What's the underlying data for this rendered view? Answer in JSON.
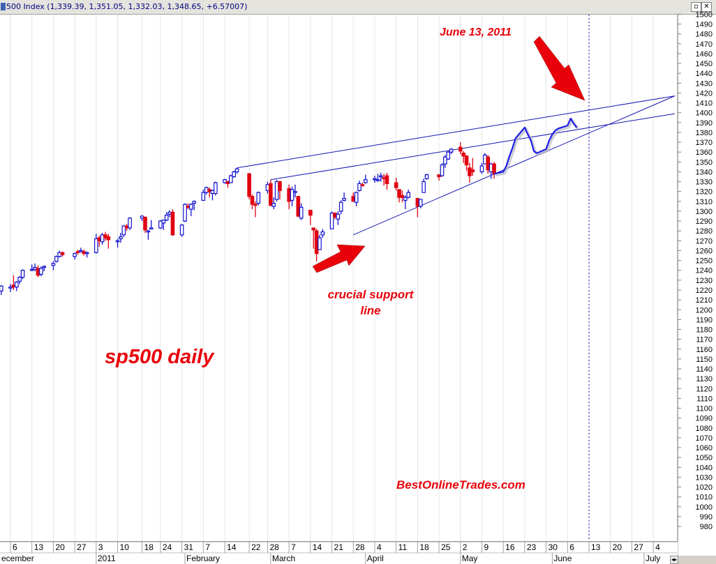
{
  "window": {
    "title": "500 Index (1,339.39, 1,351.05, 1,332.03, 1,348.65, +6.57007)",
    "restore_glyph": "▫",
    "close_glyph": "✕",
    "scroll_glyph": "◂▸"
  },
  "colors": {
    "plot_bg": "#ffffff",
    "up_candle": "#1010d0",
    "down_candle": "#e00010",
    "trendline": "#1414b4",
    "projection": "#1e1ee6",
    "annotation": "#e8000a",
    "axis_bg": "#ffffff"
  },
  "annotations": {
    "date_label": "June 13, 2011",
    "support_line1": "crucial support",
    "support_line2": "line",
    "chart_label": "sp500 daily",
    "watermark": "BestOnlineTrades.com"
  },
  "chart_data": {
    "type": "candlestick",
    "y_axis_side": "right",
    "ylim": [
      980,
      1500
    ],
    "y_tick_step": 10,
    "x_tick_labels": [
      {
        "date": "2010-12-06",
        "label": "6"
      },
      {
        "date": "2010-12-13",
        "label": "13"
      },
      {
        "date": "2010-12-20",
        "label": "20"
      },
      {
        "date": "2010-12-27",
        "label": "27"
      },
      {
        "date": "2011-01-03",
        "label": "3"
      },
      {
        "date": "2011-01-10",
        "label": "10"
      },
      {
        "date": "2011-01-18",
        "label": "18"
      },
      {
        "date": "2011-01-24",
        "label": "24"
      },
      {
        "date": "2011-01-31",
        "label": "31"
      },
      {
        "date": "2011-02-07",
        "label": "7"
      },
      {
        "date": "2011-02-14",
        "label": "14"
      },
      {
        "date": "2011-02-22",
        "label": "22"
      },
      {
        "date": "2011-02-28",
        "label": "28"
      },
      {
        "date": "2011-03-07",
        "label": "7"
      },
      {
        "date": "2011-03-14",
        "label": "14"
      },
      {
        "date": "2011-03-21",
        "label": "21"
      },
      {
        "date": "2011-03-28",
        "label": "28"
      },
      {
        "date": "2011-04-04",
        "label": "4"
      },
      {
        "date": "2011-04-11",
        "label": "11"
      },
      {
        "date": "2011-04-18",
        "label": "18"
      },
      {
        "date": "2011-04-25",
        "label": "25"
      },
      {
        "date": "2011-05-02",
        "label": "2"
      },
      {
        "date": "2011-05-09",
        "label": "9"
      },
      {
        "date": "2011-05-16",
        "label": "16"
      },
      {
        "date": "2011-05-23",
        "label": "23"
      },
      {
        "date": "2011-05-30",
        "label": "30"
      },
      {
        "date": "2011-06-06",
        "label": "6"
      },
      {
        "date": "2011-06-13",
        "label": "13"
      },
      {
        "date": "2011-06-20",
        "label": "20"
      },
      {
        "date": "2011-06-27",
        "label": "27"
      },
      {
        "date": "2011-07-04",
        "label": "4"
      }
    ],
    "month_labels": [
      {
        "date": "2010-12-01",
        "label": "ecember"
      },
      {
        "date": "2011-01-03",
        "label": "2011"
      },
      {
        "date": "2011-02-01",
        "label": "February"
      },
      {
        "date": "2011-03-01",
        "label": "March"
      },
      {
        "date": "2011-04-01",
        "label": "April"
      },
      {
        "date": "2011-05-02",
        "label": "May"
      },
      {
        "date": "2011-06-01",
        "label": "June"
      },
      {
        "date": "2011-07-01",
        "label": "July"
      }
    ],
    "marker_date": "2011-06-13",
    "candles": [
      {
        "d": "2010-12-03",
        "o": 1219,
        "h": 1225,
        "l": 1215,
        "c": 1224
      },
      {
        "d": "2010-12-06",
        "o": 1223,
        "h": 1226,
        "l": 1218,
        "c": 1223
      },
      {
        "d": "2010-12-07",
        "o": 1225,
        "h": 1235,
        "l": 1220,
        "c": 1223
      },
      {
        "d": "2010-12-08",
        "o": 1223,
        "h": 1229,
        "l": 1219,
        "c": 1228
      },
      {
        "d": "2010-12-09",
        "o": 1229,
        "h": 1234,
        "l": 1226,
        "c": 1233
      },
      {
        "d": "2010-12-10",
        "o": 1233,
        "h": 1241,
        "l": 1231,
        "c": 1240
      },
      {
        "d": "2010-12-13",
        "o": 1241,
        "h": 1246,
        "l": 1239,
        "c": 1241
      },
      {
        "d": "2010-12-14",
        "o": 1241,
        "h": 1247,
        "l": 1239,
        "c": 1243
      },
      {
        "d": "2010-12-15",
        "o": 1242,
        "h": 1245,
        "l": 1233,
        "c": 1235
      },
      {
        "d": "2010-12-16",
        "o": 1236,
        "h": 1244,
        "l": 1234,
        "c": 1242
      },
      {
        "d": "2010-12-17",
        "o": 1243,
        "h": 1245,
        "l": 1239,
        "c": 1244
      },
      {
        "d": "2010-12-20",
        "o": 1245,
        "h": 1249,
        "l": 1240,
        "c": 1247
      },
      {
        "d": "2010-12-21",
        "o": 1249,
        "h": 1255,
        "l": 1248,
        "c": 1254
      },
      {
        "d": "2010-12-22",
        "o": 1254,
        "h": 1260,
        "l": 1253,
        "c": 1258
      },
      {
        "d": "2010-12-23",
        "o": 1258,
        "h": 1259,
        "l": 1254,
        "c": 1256
      },
      {
        "d": "2010-12-27",
        "o": 1254,
        "h": 1258,
        "l": 1251,
        "c": 1257
      },
      {
        "d": "2010-12-28",
        "o": 1259,
        "h": 1261,
        "l": 1256,
        "c": 1258
      },
      {
        "d": "2010-12-29",
        "o": 1259,
        "h": 1263,
        "l": 1258,
        "c": 1260
      },
      {
        "d": "2010-12-30",
        "o": 1259,
        "h": 1261,
        "l": 1255,
        "c": 1257
      },
      {
        "d": "2010-12-31",
        "o": 1257,
        "h": 1259,
        "l": 1253,
        "c": 1258
      },
      {
        "d": "2011-01-03",
        "o": 1258,
        "h": 1277,
        "l": 1257,
        "c": 1272
      },
      {
        "d": "2011-01-04",
        "o": 1273,
        "h": 1275,
        "l": 1264,
        "c": 1270
      },
      {
        "d": "2011-01-05",
        "o": 1269,
        "h": 1278,
        "l": 1266,
        "c": 1276
      },
      {
        "d": "2011-01-06",
        "o": 1276,
        "h": 1279,
        "l": 1270,
        "c": 1273
      },
      {
        "d": "2011-01-07",
        "o": 1274,
        "h": 1277,
        "l": 1262,
        "c": 1271
      },
      {
        "d": "2011-01-10",
        "o": 1270,
        "h": 1272,
        "l": 1263,
        "c": 1270
      },
      {
        "d": "2011-01-11",
        "o": 1272,
        "h": 1278,
        "l": 1268,
        "c": 1274
      },
      {
        "d": "2011-01-12",
        "o": 1276,
        "h": 1286,
        "l": 1274,
        "c": 1285
      },
      {
        "d": "2011-01-13",
        "o": 1285,
        "h": 1287,
        "l": 1280,
        "c": 1283
      },
      {
        "d": "2011-01-14",
        "o": 1283,
        "h": 1294,
        "l": 1281,
        "c": 1293
      },
      {
        "d": "2011-01-18",
        "o": 1293,
        "h": 1296,
        "l": 1290,
        "c": 1295
      },
      {
        "d": "2011-01-19",
        "o": 1294,
        "h": 1294,
        "l": 1278,
        "c": 1281
      },
      {
        "d": "2011-01-20",
        "o": 1280,
        "h": 1281,
        "l": 1271,
        "c": 1280
      },
      {
        "d": "2011-01-21",
        "o": 1283,
        "h": 1291,
        "l": 1282,
        "c": 1283
      },
      {
        "d": "2011-01-24",
        "o": 1283,
        "h": 1291,
        "l": 1282,
        "c": 1290
      },
      {
        "d": "2011-01-25",
        "o": 1288,
        "h": 1291,
        "l": 1281,
        "c": 1291
      },
      {
        "d": "2011-01-26",
        "o": 1291,
        "h": 1299,
        "l": 1290,
        "c": 1296
      },
      {
        "d": "2011-01-27",
        "o": 1297,
        "h": 1301,
        "l": 1294,
        "c": 1299
      },
      {
        "d": "2011-01-28",
        "o": 1299,
        "h": 1302,
        "l": 1275,
        "c": 1276
      },
      {
        "d": "2011-01-31",
        "o": 1276,
        "h": 1287,
        "l": 1274,
        "c": 1286
      },
      {
        "d": "2011-02-01",
        "o": 1290,
        "h": 1308,
        "l": 1289,
        "c": 1307
      },
      {
        "d": "2011-02-02",
        "o": 1305,
        "h": 1308,
        "l": 1302,
        "c": 1304
      },
      {
        "d": "2011-02-03",
        "o": 1302,
        "h": 1308,
        "l": 1295,
        "c": 1307
      },
      {
        "d": "2011-02-04",
        "o": 1308,
        "h": 1311,
        "l": 1301,
        "c": 1310
      },
      {
        "d": "2011-02-07",
        "o": 1311,
        "h": 1322,
        "l": 1311,
        "c": 1319
      },
      {
        "d": "2011-02-08",
        "o": 1319,
        "h": 1325,
        "l": 1317,
        "c": 1324
      },
      {
        "d": "2011-02-09",
        "o": 1322,
        "h": 1324,
        "l": 1314,
        "c": 1320
      },
      {
        "d": "2011-02-10",
        "o": 1318,
        "h": 1322,
        "l": 1311,
        "c": 1321
      },
      {
        "d": "2011-02-11",
        "o": 1318,
        "h": 1330,
        "l": 1316,
        "c": 1329
      },
      {
        "d": "2011-02-14",
        "o": 1329,
        "h": 1333,
        "l": 1328,
        "c": 1332
      },
      {
        "d": "2011-02-15",
        "o": 1330,
        "h": 1331,
        "l": 1324,
        "c": 1328
      },
      {
        "d": "2011-02-16",
        "o": 1329,
        "h": 1337,
        "l": 1329,
        "c": 1336
      },
      {
        "d": "2011-02-17",
        "o": 1335,
        "h": 1341,
        "l": 1334,
        "c": 1340
      },
      {
        "d": "2011-02-18",
        "o": 1340,
        "h": 1344,
        "l": 1338,
        "c": 1343
      },
      {
        "d": "2011-02-22",
        "o": 1338,
        "h": 1339,
        "l": 1312,
        "c": 1315
      },
      {
        "d": "2011-02-23",
        "o": 1315,
        "h": 1317,
        "l": 1302,
        "c": 1307
      },
      {
        "d": "2011-02-24",
        "o": 1307,
        "h": 1310,
        "l": 1294,
        "c": 1306
      },
      {
        "d": "2011-02-25",
        "o": 1308,
        "h": 1320,
        "l": 1306,
        "c": 1319
      },
      {
        "d": "2011-02-28",
        "o": 1321,
        "h": 1330,
        "l": 1318,
        "c": 1327
      },
      {
        "d": "2011-03-01",
        "o": 1328,
        "h": 1332,
        "l": 1305,
        "c": 1306
      },
      {
        "d": "2011-03-02",
        "o": 1305,
        "h": 1314,
        "l": 1302,
        "c": 1308
      },
      {
        "d": "2011-03-03",
        "o": 1312,
        "h": 1332,
        "l": 1310,
        "c": 1330
      },
      {
        "d": "2011-03-04",
        "o": 1330,
        "h": 1331,
        "l": 1312,
        "c": 1321
      },
      {
        "d": "2011-03-07",
        "o": 1323,
        "h": 1327,
        "l": 1302,
        "c": 1310
      },
      {
        "d": "2011-03-08",
        "o": 1311,
        "h": 1325,
        "l": 1305,
        "c": 1322
      },
      {
        "d": "2011-03-09",
        "o": 1320,
        "h": 1327,
        "l": 1314,
        "c": 1320
      },
      {
        "d": "2011-03-10",
        "o": 1315,
        "h": 1315,
        "l": 1294,
        "c": 1295
      },
      {
        "d": "2011-03-11",
        "o": 1293,
        "h": 1308,
        "l": 1291,
        "c": 1304
      },
      {
        "d": "2011-03-14",
        "o": 1301,
        "h": 1301,
        "l": 1286,
        "c": 1296
      },
      {
        "d": "2011-03-15",
        "o": 1283,
        "h": 1283,
        "l": 1262,
        "c": 1281
      },
      {
        "d": "2011-03-16",
        "o": 1280,
        "h": 1282,
        "l": 1249,
        "c": 1257
      },
      {
        "d": "2011-03-17",
        "o": 1261,
        "h": 1276,
        "l": 1261,
        "c": 1273
      },
      {
        "d": "2011-03-18",
        "o": 1276,
        "h": 1282,
        "l": 1273,
        "c": 1279
      },
      {
        "d": "2011-03-21",
        "o": 1282,
        "h": 1300,
        "l": 1282,
        "c": 1298
      },
      {
        "d": "2011-03-22",
        "o": 1298,
        "h": 1299,
        "l": 1292,
        "c": 1294
      },
      {
        "d": "2011-03-23",
        "o": 1292,
        "h": 1300,
        "l": 1286,
        "c": 1297
      },
      {
        "d": "2011-03-24",
        "o": 1300,
        "h": 1311,
        "l": 1297,
        "c": 1309
      },
      {
        "d": "2011-03-25",
        "o": 1311,
        "h": 1319,
        "l": 1310,
        "c": 1313
      },
      {
        "d": "2011-03-28",
        "o": 1315,
        "h": 1319,
        "l": 1310,
        "c": 1310
      },
      {
        "d": "2011-03-29",
        "o": 1309,
        "h": 1320,
        "l": 1305,
        "c": 1319
      },
      {
        "d": "2011-03-30",
        "o": 1321,
        "h": 1331,
        "l": 1320,
        "c": 1328
      },
      {
        "d": "2011-03-31",
        "o": 1327,
        "h": 1329,
        "l": 1325,
        "c": 1326
      },
      {
        "d": "2011-04-01",
        "o": 1329,
        "h": 1337,
        "l": 1328,
        "c": 1332
      },
      {
        "d": "2011-04-04",
        "o": 1333,
        "h": 1336,
        "l": 1329,
        "c": 1333
      },
      {
        "d": "2011-04-05",
        "o": 1332,
        "h": 1338,
        "l": 1330,
        "c": 1332
      },
      {
        "d": "2011-04-06",
        "o": 1335,
        "h": 1339,
        "l": 1330,
        "c": 1336
      },
      {
        "d": "2011-04-07",
        "o": 1334,
        "h": 1338,
        "l": 1326,
        "c": 1333
      },
      {
        "d": "2011-04-08",
        "o": 1336,
        "h": 1339,
        "l": 1322,
        "c": 1328
      },
      {
        "d": "2011-04-11",
        "o": 1329,
        "h": 1334,
        "l": 1321,
        "c": 1324
      },
      {
        "d": "2011-04-12",
        "o": 1322,
        "h": 1322,
        "l": 1309,
        "c": 1314
      },
      {
        "d": "2011-04-13",
        "o": 1316,
        "h": 1321,
        "l": 1309,
        "c": 1314
      },
      {
        "d": "2011-04-14",
        "o": 1311,
        "h": 1316,
        "l": 1302,
        "c": 1314
      },
      {
        "d": "2011-04-15",
        "o": 1314,
        "h": 1322,
        "l": 1313,
        "c": 1319
      },
      {
        "d": "2011-04-18",
        "o": 1313,
        "h": 1313,
        "l": 1294,
        "c": 1305
      },
      {
        "d": "2011-04-19",
        "o": 1305,
        "h": 1312,
        "l": 1303,
        "c": 1312
      },
      {
        "d": "2011-04-20",
        "o": 1319,
        "h": 1333,
        "l": 1319,
        "c": 1330
      },
      {
        "d": "2011-04-21",
        "o": 1333,
        "h": 1338,
        "l": 1332,
        "c": 1337
      },
      {
        "d": "2011-04-25",
        "o": 1337,
        "h": 1337,
        "l": 1331,
        "c": 1335
      },
      {
        "d": "2011-04-26",
        "o": 1336,
        "h": 1349,
        "l": 1335,
        "c": 1347
      },
      {
        "d": "2011-04-27",
        "o": 1348,
        "h": 1357,
        "l": 1344,
        "c": 1355
      },
      {
        "d": "2011-04-28",
        "o": 1353,
        "h": 1361,
        "l": 1352,
        "c": 1360
      },
      {
        "d": "2011-04-29",
        "o": 1360,
        "h": 1364,
        "l": 1358,
        "c": 1363
      },
      {
        "d": "2011-05-02",
        "o": 1365,
        "h": 1370,
        "l": 1358,
        "c": 1361
      },
      {
        "d": "2011-05-03",
        "o": 1359,
        "h": 1361,
        "l": 1349,
        "c": 1356
      },
      {
        "d": "2011-05-04",
        "o": 1356,
        "h": 1357,
        "l": 1341,
        "c": 1347
      },
      {
        "d": "2011-05-05",
        "o": 1344,
        "h": 1349,
        "l": 1329,
        "c": 1336
      },
      {
        "d": "2011-05-06",
        "o": 1342,
        "h": 1354,
        "l": 1336,
        "c": 1340
      },
      {
        "d": "2011-05-09",
        "o": 1340,
        "h": 1349,
        "l": 1338,
        "c": 1346
      },
      {
        "d": "2011-05-10",
        "o": 1348,
        "h": 1359,
        "l": 1348,
        "c": 1357
      },
      {
        "d": "2011-05-11",
        "o": 1355,
        "h": 1357,
        "l": 1338,
        "c": 1342
      },
      {
        "d": "2011-05-12",
        "o": 1340,
        "h": 1349,
        "l": 1333,
        "c": 1348
      },
      {
        "d": "2011-05-13",
        "o": 1348,
        "h": 1350,
        "l": 1333,
        "c": 1338
      }
    ],
    "trendlines": [
      {
        "name": "upper-long",
        "from": {
          "d": "2011-02-18",
          "v": 1344
        },
        "to": {
          "d": "2011-07-11",
          "v": 1417
        }
      },
      {
        "name": "upper-short",
        "from": {
          "d": "2011-03-01",
          "v": 1332
        },
        "to": {
          "d": "2011-07-11",
          "v": 1399
        }
      },
      {
        "name": "support",
        "from": {
          "d": "2011-03-28",
          "v": 1276
        },
        "to": {
          "d": "2011-07-11",
          "v": 1417
        }
      }
    ],
    "projection": [
      {
        "d": "2011-05-13",
        "v": 1338
      },
      {
        "d": "2011-05-16",
        "v": 1340
      },
      {
        "d": "2011-05-17",
        "v": 1346
      },
      {
        "d": "2011-05-18",
        "v": 1356
      },
      {
        "d": "2011-05-19",
        "v": 1364
      },
      {
        "d": "2011-05-20",
        "v": 1374
      },
      {
        "d": "2011-05-23",
        "v": 1385
      },
      {
        "d": "2011-05-24",
        "v": 1378
      },
      {
        "d": "2011-05-25",
        "v": 1372
      },
      {
        "d": "2011-05-26",
        "v": 1361
      },
      {
        "d": "2011-05-27",
        "v": 1359
      },
      {
        "d": "2011-05-30",
        "v": 1363
      },
      {
        "d": "2011-05-31",
        "v": 1372
      },
      {
        "d": "2011-06-01",
        "v": 1378
      },
      {
        "d": "2011-06-02",
        "v": 1382
      },
      {
        "d": "2011-06-03",
        "v": 1384
      },
      {
        "d": "2011-06-06",
        "v": 1387
      },
      {
        "d": "2011-06-07",
        "v": 1394
      },
      {
        "d": "2011-06-08",
        "v": 1389
      },
      {
        "d": "2011-06-09",
        "v": 1385
      }
    ]
  }
}
